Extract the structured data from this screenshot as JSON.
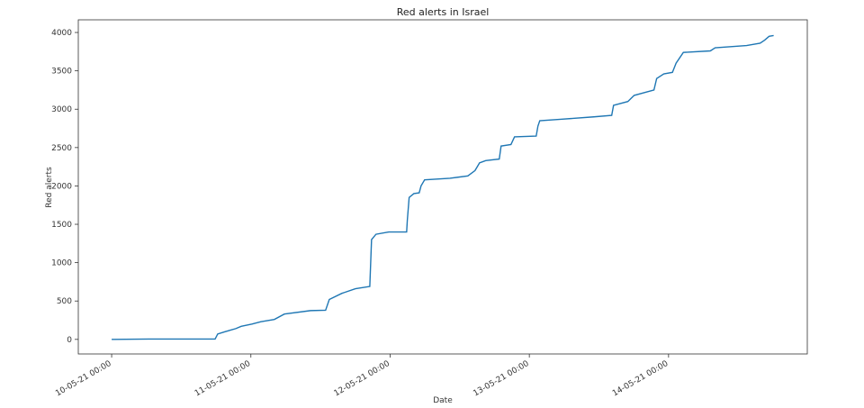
{
  "chart_data": {
    "type": "line",
    "title": "Red alerts in Israel",
    "xlabel": "Date",
    "ylabel": "Red alerts",
    "x": [
      "10-05-21 00:00",
      "10-05-21 06:20",
      "10-05-21 17:50",
      "10-05-21 18:17",
      "10-05-21 19:32",
      "10-05-21 21:23",
      "10-05-21 22:20",
      "11-05-21 00:11",
      "11-05-21 01:44",
      "11-05-21 04:03",
      "11-05-21 05:46",
      "11-05-21 10:16",
      "11-05-21 12:53",
      "11-05-21 13:31",
      "11-05-21 15:41",
      "11-05-21 18:01",
      "11-05-21 20:30",
      "11-05-21 20:48",
      "11-05-21 21:34",
      "11-05-21 23:46",
      "12-05-21 02:51",
      "12-05-21 02:58",
      "12-05-21 03:17",
      "12-05-21 04:06",
      "12-05-21 05:01",
      "12-05-21 05:20",
      "12-05-21 05:57",
      "12-05-21 10:18",
      "12-05-21 13:24",
      "12-05-21 14:38",
      "12-05-21 15:25",
      "12-05-21 16:29",
      "12-05-21 18:49",
      "12-05-21 19:08",
      "12-05-21 20:50",
      "12-05-21 21:27",
      "13-05-21 01:11",
      "13-05-21 01:29",
      "13-05-21 01:48",
      "13-05-21 05:40",
      "13-05-21 11:06",
      "13-05-21 14:12",
      "13-05-21 14:31",
      "13-05-21 16:59",
      "13-05-21 18:04",
      "13-05-21 21:29",
      "13-05-21 21:57",
      "13-05-21 23:11",
      "14-05-21 00:40",
      "14-05-21 01:18",
      "14-05-21 02:33",
      "14-05-21 07:12",
      "14-05-21 08:02",
      "14-05-21 13:27",
      "14-05-21 15:47",
      "14-05-21 16:34",
      "14-05-21 17:20",
      "14-05-21 18:07"
    ],
    "series": [
      {
        "name": "Red alerts",
        "color": "#1f77b4",
        "values": [
          0,
          5,
          5,
          70,
          100,
          140,
          170,
          200,
          230,
          260,
          330,
          375,
          380,
          520,
          600,
          660,
          690,
          1300,
          1370,
          1400,
          1400,
          1550,
          1850,
          1900,
          1910,
          2000,
          2080,
          2100,
          2130,
          2200,
          2300,
          2330,
          2350,
          2520,
          2540,
          2640,
          2650,
          2780,
          2850,
          2870,
          2900,
          2920,
          3050,
          3100,
          3180,
          3250,
          3400,
          3460,
          3480,
          3600,
          3740,
          3760,
          3800,
          3830,
          3860,
          3900,
          3950,
          3960
        ]
      }
    ],
    "xlim": [
      "09-05-21 18:15",
      "14-05-21 23:55"
    ],
    "xticks": [
      "10-05-21 00:00",
      "11-05-21 00:00",
      "12-05-21 00:00",
      "13-05-21 00:00",
      "14-05-21 00:00"
    ],
    "ylim": [
      -190,
      4165
    ],
    "yticks": [
      0,
      500,
      1000,
      1500,
      2000,
      2500,
      3000,
      3500,
      4000
    ]
  }
}
